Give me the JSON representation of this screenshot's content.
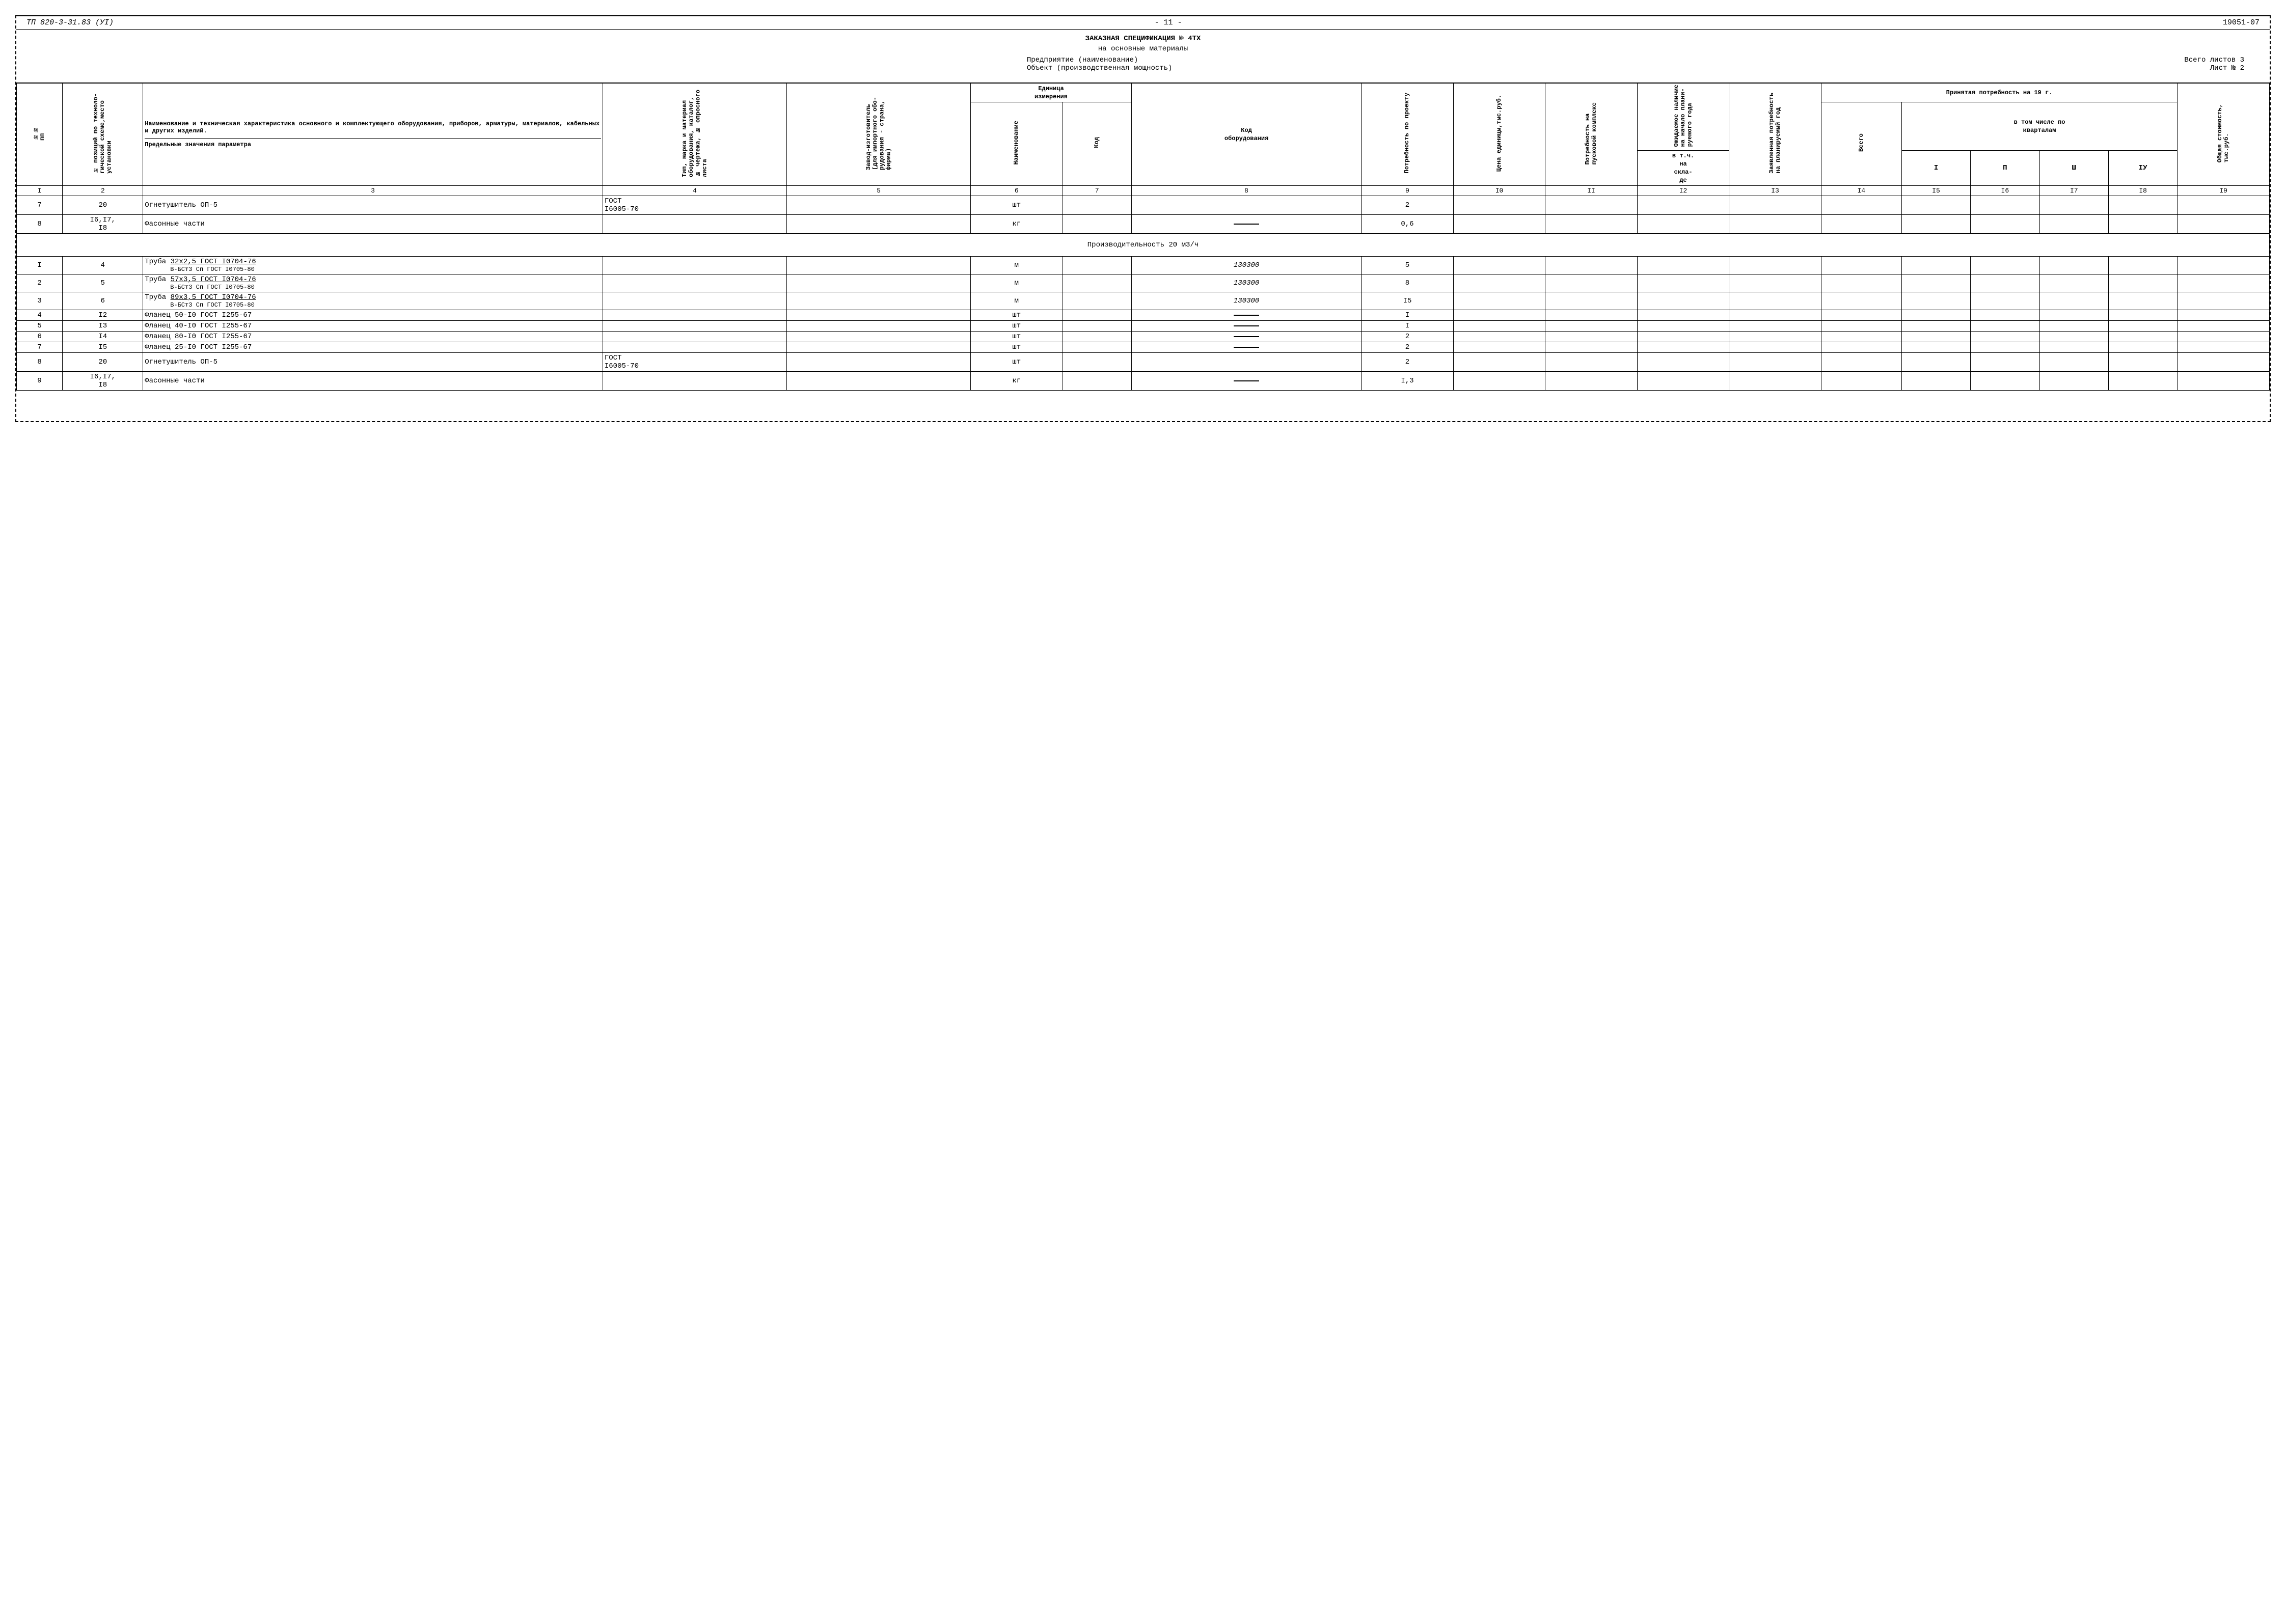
{
  "top": {
    "left": "ТП   820-3-31.83        (УI)",
    "center": "- 11 -",
    "right": "19051-07"
  },
  "header": {
    "title": "ЗАКАЗНАЯ СПЕЦИФИКАЦИЯ № 4ТХ",
    "subtitle": "на основные материалы",
    "enterprise": "Предприятие (наименование)",
    "object": "Объект (производственная мощность)",
    "sheets_total": "Всего листов 3",
    "sheet_no": "Лист № 2"
  },
  "columns": {
    "c1": "№№\nпп",
    "c2": "№ позиций по техноло-\nгической схеме,место\nустановки",
    "c3_a": "Наименование и техническая характеристика основного и комплектующего оборудования, приборов, арматуры, материалов, кабельных и других изделий.",
    "c3_b": "Предельные значения параметра",
    "c4": "Тип, марка и материал\nоборудования, каталог,\n№ чертежа, № опросного\nлиста",
    "c5": "Завод-изготовитель\n(для импортного обо-\nрудования - страна,\nфирма)",
    "c6grp": "Единица\nизмерения",
    "c6": "Наименование",
    "c7": "Код",
    "c8": "Код\nоборудования",
    "c9": "Потребность по проекту",
    "c10": "Цена единицы,тыс.руб.",
    "c11": "Потребность на\nпусковой комплекс",
    "c12a": "Ожидаемое наличие\nна начало плани-\nруемого года",
    "c12b": "в т.ч.\nна\nскла-\nде",
    "c13": "Заявленная потребность\nна планируемый год",
    "c14grp": "Принятая потребность на 19   г.",
    "c14sub": "в том числе по\nкварталам",
    "c14": "Всего",
    "c15": "I",
    "c16": "П",
    "c17": "Ш",
    "c18": "IУ",
    "c19": "Общая стоимость,\nтыс.руб."
  },
  "colnums": [
    "I",
    "2",
    "3",
    "4",
    "5",
    "6",
    "7",
    "8",
    "9",
    "I0",
    "II",
    "I2",
    "I3",
    "I4",
    "I5",
    "I6",
    "I7",
    "I8",
    "I9"
  ],
  "section_title": "Производительность 20 м3/ч",
  "rows": [
    {
      "n": "7",
      "pos": "20",
      "name": "Огнетушитель ОП-5",
      "sub": "",
      "type": "ГОСТ\nI6005-70",
      "unit": "шт",
      "code": "",
      "qty": "2"
    },
    {
      "n": "8",
      "pos": "I6,I7,\nI8",
      "name": "Фасонные части",
      "sub": "",
      "type": "",
      "unit": "кг",
      "code": "—",
      "qty": "0,6"
    },
    {
      "section": true
    },
    {
      "n": "I",
      "pos": "4",
      "name": "Труба <u>32х2,5 ГОСТ I0704-76</u>",
      "sub": "В-БСт3 Сп ГОСТ I0705-80",
      "type": "",
      "unit": "м",
      "code": "130300",
      "qty": "5"
    },
    {
      "n": "2",
      "pos": "5",
      "name": "Труба <u>57х3,5 ГОСТ I0704-76</u>",
      "sub": "В-БСт3 Сп ГОСТ I0705-80",
      "type": "",
      "unit": "м",
      "code": "130300",
      "qty": "8"
    },
    {
      "n": "3",
      "pos": "6",
      "name": "Труба <u>89х3,5 ГОСТ I0704-76</u>",
      "sub": "В-БСт3 Сп ГОСТ I0705-80",
      "type": "",
      "unit": "м",
      "code": "130300",
      "qty": "I5"
    },
    {
      "n": "4",
      "pos": "I2",
      "name": "Фланец 50-I0 ГОСТ I255-67",
      "sub": "",
      "type": "",
      "unit": "шт",
      "code": "—",
      "qty": "I"
    },
    {
      "n": "5",
      "pos": "I3",
      "name": "Фланец 40-I0 ГОСТ I255-67",
      "sub": "",
      "type": "",
      "unit": "шт",
      "code": "—",
      "qty": "I"
    },
    {
      "n": "6",
      "pos": "I4",
      "name": "Фланец 80-I0 ГОСТ I255-67",
      "sub": "",
      "type": "",
      "unit": "шт",
      "code": "—",
      "qty": "2"
    },
    {
      "n": "7",
      "pos": "I5",
      "name": "Фланец 25-I0 ГОСТ I255-67",
      "sub": "",
      "type": "",
      "unit": "шт",
      "code": "—",
      "qty": "2"
    },
    {
      "n": "8",
      "pos": "20",
      "name": "Огнетушитель ОП-5",
      "sub": "",
      "type": "ГОСТ\nI6005-70",
      "unit": "шт",
      "code": "",
      "qty": "2"
    },
    {
      "n": "9",
      "pos": "I6,I7,\nI8",
      "name": "Фасонные части",
      "sub": "",
      "type": "",
      "unit": "кг",
      "code": "—",
      "qty": "I,3"
    }
  ]
}
